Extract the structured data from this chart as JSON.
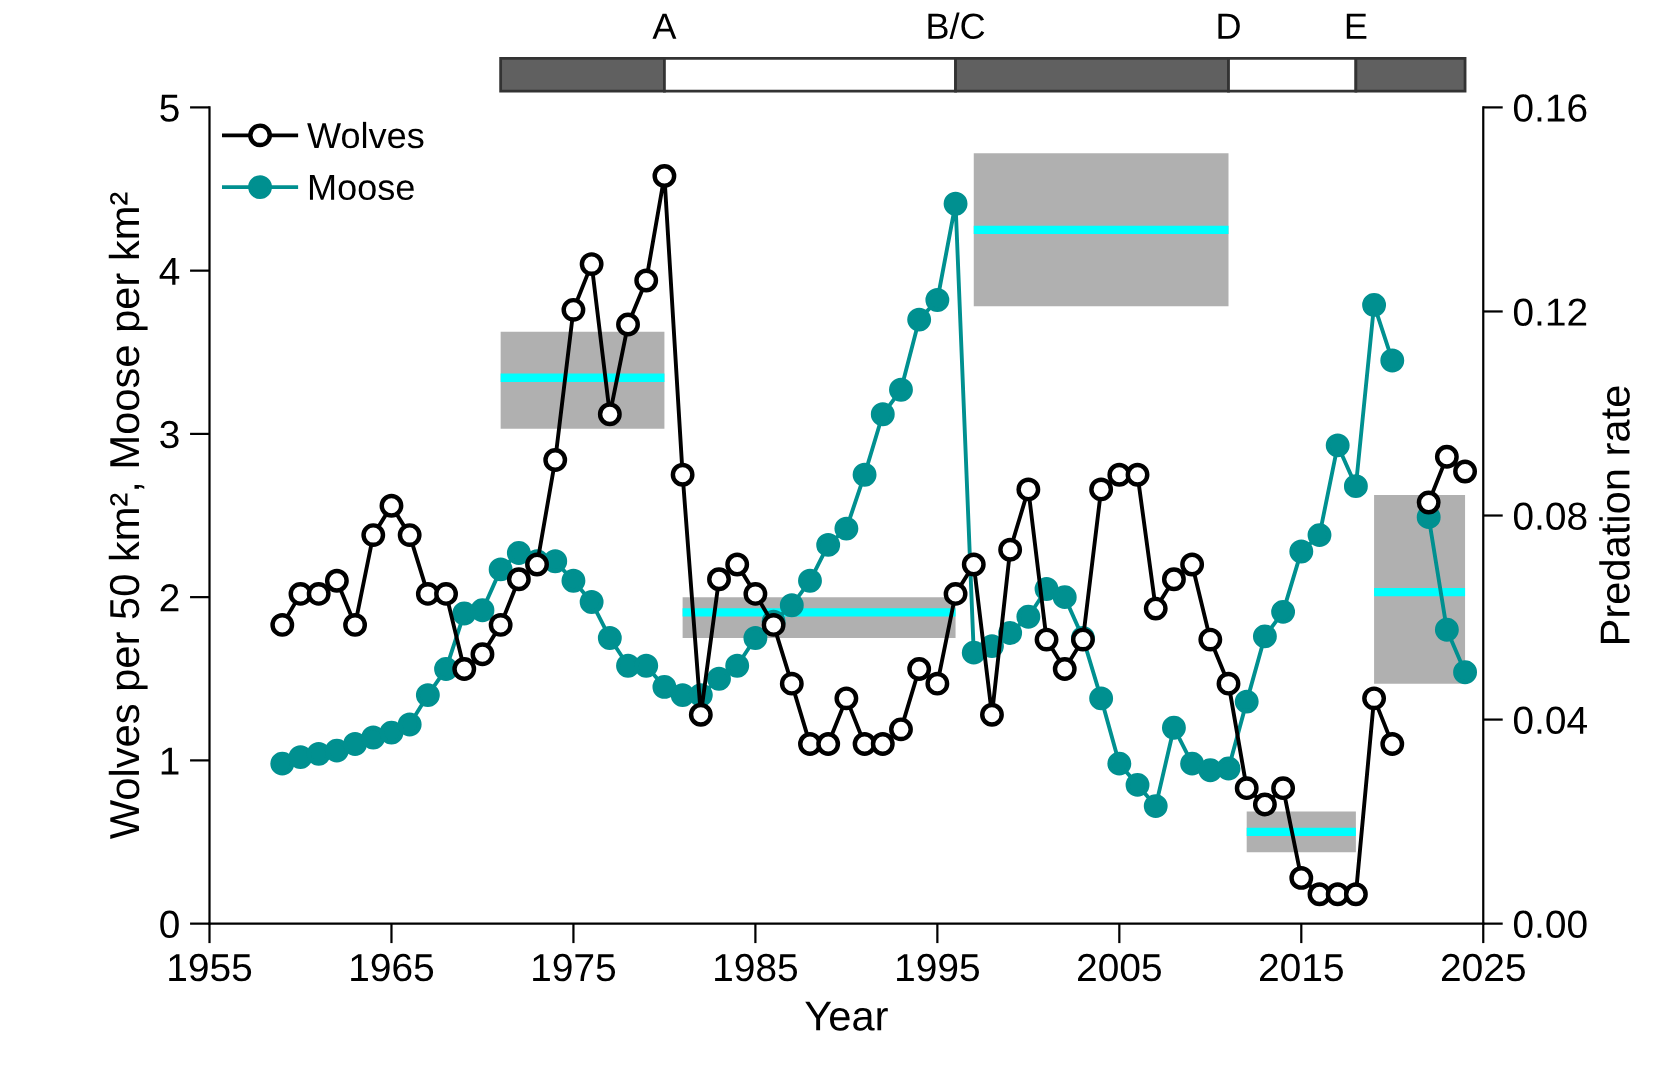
{
  "chart_data": {
    "type": "line",
    "xlabel": "Year",
    "ylabel": "Wolves per 50 km², Moose per km²",
    "y2label": "Predation rate",
    "xlim": [
      1955,
      2025
    ],
    "xticks": [
      1955,
      1965,
      1975,
      1985,
      1995,
      2005,
      2015,
      2025
    ],
    "ylim": [
      0,
      5
    ],
    "yticks": [
      0,
      1,
      2,
      3,
      4,
      5
    ],
    "y2lim": [
      0,
      0.16
    ],
    "y2ticks": [
      {
        "value": 0,
        "label": "0.00"
      },
      {
        "value": 0.04,
        "label": "0.04"
      },
      {
        "value": 0.08,
        "label": "0.08"
      },
      {
        "value": 0.12,
        "label": "0.12"
      },
      {
        "value": 0.16,
        "label": "0.16"
      }
    ],
    "x": [
      1959,
      1960,
      1961,
      1962,
      1963,
      1964,
      1965,
      1966,
      1967,
      1968,
      1969,
      1970,
      1971,
      1972,
      1973,
      1974,
      1975,
      1976,
      1977,
      1978,
      1979,
      1980,
      1981,
      1982,
      1983,
      1984,
      1985,
      1986,
      1987,
      1988,
      1989,
      1990,
      1991,
      1992,
      1993,
      1994,
      1995,
      1996,
      1997,
      1998,
      1999,
      2000,
      2001,
      2002,
      2003,
      2004,
      2005,
      2006,
      2007,
      2008,
      2009,
      2010,
      2011,
      2012,
      2013,
      2014,
      2015,
      2016,
      2017,
      2018,
      2019,
      2020,
      2021,
      2022,
      2023,
      2024
    ],
    "marker": "circle",
    "legend": "top left",
    "grid": false,
    "series": [
      {
        "name": "Wolves",
        "color": "#000000",
        "values": [
          1.83,
          2.02,
          2.02,
          2.1,
          1.83,
          2.38,
          2.56,
          2.38,
          2.02,
          2.02,
          1.56,
          1.65,
          1.83,
          2.11,
          2.2,
          2.84,
          3.76,
          4.04,
          3.12,
          3.67,
          3.94,
          4.58,
          2.75,
          1.28,
          2.11,
          2.2,
          2.02,
          1.83,
          1.47,
          1.1,
          1.1,
          1.38,
          1.1,
          1.1,
          1.19,
          1.56,
          1.47,
          2.02,
          2.2,
          1.28,
          2.29,
          2.66,
          1.74,
          1.56,
          1.74,
          2.66,
          2.75,
          2.75,
          1.93,
          2.11,
          2.2,
          1.74,
          1.47,
          0.83,
          0.73,
          0.83,
          0.28,
          0.18,
          0.18,
          0.18,
          1.38,
          1.1,
          null,
          2.58,
          2.86,
          2.77
        ]
      },
      {
        "name": "Moose",
        "color": "#009090",
        "values": [
          0.98,
          1.02,
          1.04,
          1.06,
          1.1,
          1.14,
          1.17,
          1.22,
          1.4,
          1.56,
          1.9,
          1.92,
          2.17,
          2.27,
          2.22,
          2.22,
          2.1,
          1.97,
          1.75,
          1.58,
          1.58,
          1.45,
          1.4,
          1.4,
          1.5,
          1.58,
          1.75,
          1.85,
          1.95,
          2.1,
          2.32,
          2.42,
          2.75,
          3.12,
          3.27,
          3.7,
          3.82,
          4.41,
          1.66,
          1.7,
          1.78,
          1.88,
          2.05,
          2.0,
          1.75,
          1.38,
          0.98,
          0.85,
          0.72,
          1.2,
          0.98,
          0.94,
          0.95,
          1.36,
          1.76,
          1.91,
          2.28,
          2.38,
          2.93,
          2.68,
          3.79,
          3.45,
          null,
          2.49,
          1.8,
          1.54
        ]
      },
      {
        "axis": "y2",
        "marker": "none",
        "color": "#00ffff",
        "x": [
          1971,
          1980
        ],
        "values": [
          0.107,
          0.107
        ],
        "lower": [
          0.097,
          0.097
        ],
        "upper": [
          0.116,
          0.116
        ]
      },
      {
        "axis": "y2",
        "marker": "none",
        "color": "#00ffff",
        "x": [
          1981,
          1996
        ],
        "values": [
          0.061,
          0.061
        ],
        "lower": [
          0.056,
          0.056
        ],
        "upper": [
          0.064,
          0.064
        ]
      },
      {
        "axis": "y2",
        "marker": "none",
        "color": "#00ffff",
        "x": [
          1997,
          2011
        ],
        "values": [
          0.136,
          0.136
        ],
        "lower": [
          0.121,
          0.121
        ],
        "upper": [
          0.151,
          0.151
        ]
      },
      {
        "axis": "y2",
        "marker": "none",
        "color": "#00ffff",
        "x": [
          2012,
          2018
        ],
        "values": [
          0.018,
          0.018
        ],
        "lower": [
          0.014,
          0.014
        ],
        "upper": [
          0.022,
          0.022
        ]
      },
      {
        "axis": "y2",
        "marker": "none",
        "color": "#00ffff",
        "x": [
          2019,
          2024
        ],
        "values": [
          0.065,
          0.065
        ],
        "lower": [
          0.047,
          0.047
        ],
        "upper": [
          0.084,
          0.084
        ]
      }
    ],
    "annotations": [
      "A",
      "B/C",
      "D",
      "E"
    ]
  }
}
